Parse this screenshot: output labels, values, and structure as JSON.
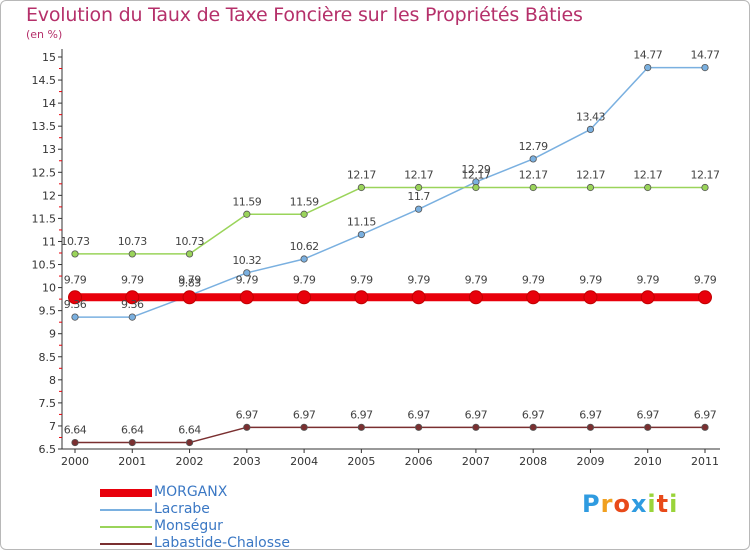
{
  "title": "Evolution du Taux de Taxe Foncière sur les Propriétés Bâties",
  "unit_label": "(en %)",
  "logo_text": "Proxiti",
  "chart_data": {
    "type": "line",
    "title": "Evolution du Taux de Taxe Foncière sur les Propriétés Bâties",
    "ylabel": "(en %)",
    "xlabel": "",
    "categories": [
      "2000",
      "2001",
      "2002",
      "2003",
      "2004",
      "2005",
      "2006",
      "2007",
      "2008",
      "2009",
      "2010",
      "2011"
    ],
    "ylim": [
      6.5,
      15
    ],
    "yticks": [
      "6.5",
      "7",
      "7.5",
      "8",
      "8.5",
      "9",
      "9.5",
      "10",
      "10.5",
      "11",
      "11.5",
      "12",
      "12.5",
      "13",
      "13.5",
      "14",
      "14.5",
      "15"
    ],
    "series": [
      {
        "name": "MORGANX",
        "color": "#e8000b",
        "values": [
          9.79,
          9.79,
          9.79,
          9.79,
          9.79,
          9.79,
          9.79,
          9.79,
          9.79,
          9.79,
          9.79,
          9.79
        ],
        "labels": [
          "9.79",
          "9.79",
          "9.79",
          "9.79",
          "9.79",
          "9.79",
          "9.79",
          "9.79",
          "9.79",
          "9.79",
          "9.79",
          "9.79"
        ]
      },
      {
        "name": "Lacrabe",
        "color": "#7ab0e0",
        "values": [
          9.36,
          9.36,
          9.83,
          10.32,
          10.62,
          11.15,
          11.7,
          12.29,
          12.79,
          13.43,
          14.77,
          14.77
        ],
        "labels": [
          "9.36",
          "9.36",
          "9.83",
          "10.32",
          "10.62",
          "11.15",
          "11.7",
          "12.29",
          "12.79",
          "13.43",
          "14.77",
          "14.77"
        ]
      },
      {
        "name": "Monségur",
        "color": "#9ad45a",
        "values": [
          10.73,
          10.73,
          10.73,
          11.59,
          11.59,
          12.17,
          12.17,
          12.17,
          12.17,
          12.17,
          12.17,
          12.17
        ],
        "labels": [
          "10.73",
          "10.73",
          "10.73",
          "11.59",
          "11.59",
          "12.17",
          "12.17",
          "12.17",
          "12.17",
          "12.17",
          "12.17",
          "12.17"
        ]
      },
      {
        "name": "Labastide-Chalosse",
        "color": "#7a2f30",
        "values": [
          6.64,
          6.64,
          6.64,
          6.97,
          6.97,
          6.97,
          6.97,
          6.97,
          6.97,
          6.97,
          6.97,
          6.97
        ],
        "labels": [
          "6.64",
          "6.64",
          "6.64",
          "6.97",
          "6.97",
          "6.97",
          "6.97",
          "6.97",
          "6.97",
          "6.97",
          "6.97",
          "6.97"
        ]
      }
    ],
    "grid": false,
    "legend_position": "bottom-left"
  }
}
